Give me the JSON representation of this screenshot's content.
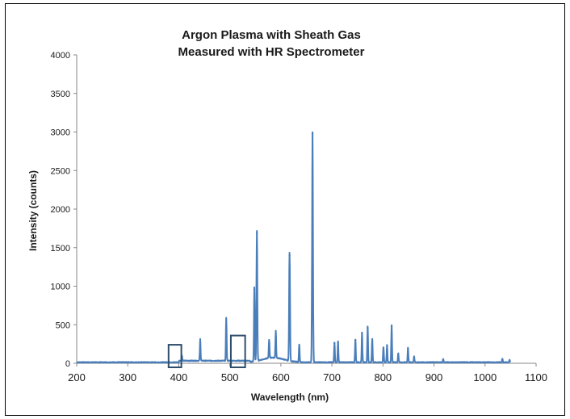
{
  "chart_data": {
    "type": "line",
    "title_line1": "Argon Plasma with Sheath Gas",
    "title_line2": "Measured with HR Spectrometer",
    "xlabel": "Wavelength (nm)",
    "ylabel": "Intensity (counts)",
    "xlim": [
      200,
      1100
    ],
    "ylim": [
      0,
      4000
    ],
    "x_ticks": [
      200,
      300,
      400,
      500,
      600,
      700,
      800,
      900,
      1000,
      1100
    ],
    "y_ticks": [
      0,
      500,
      1000,
      1500,
      2000,
      2500,
      3000,
      3500,
      4000
    ],
    "grid": false,
    "legend": "none",
    "series": [
      {
        "color": "#4a7ebb",
        "peaks": [
          {
            "x": 406,
            "y": 70
          },
          {
            "x": 442,
            "y": 280
          },
          {
            "x": 493,
            "y": 560
          },
          {
            "x": 548,
            "y": 960
          },
          {
            "x": 553,
            "y": 1690
          },
          {
            "x": 577,
            "y": 240
          },
          {
            "x": 590,
            "y": 350
          },
          {
            "x": 617,
            "y": 1400
          },
          {
            "x": 636,
            "y": 230
          },
          {
            "x": 662,
            "y": 2980
          },
          {
            "x": 705,
            "y": 260
          },
          {
            "x": 712,
            "y": 270
          },
          {
            "x": 746,
            "y": 300
          },
          {
            "x": 759,
            "y": 390
          },
          {
            "x": 770,
            "y": 460
          },
          {
            "x": 779,
            "y": 300
          },
          {
            "x": 801,
            "y": 200
          },
          {
            "x": 808,
            "y": 230
          },
          {
            "x": 817,
            "y": 480
          },
          {
            "x": 830,
            "y": 120
          },
          {
            "x": 849,
            "y": 190
          },
          {
            "x": 861,
            "y": 80
          },
          {
            "x": 918,
            "y": 40
          },
          {
            "x": 1034,
            "y": 50
          },
          {
            "x": 1048,
            "y": 30
          }
        ]
      }
    ],
    "highlight_boxes": [
      {
        "x": [
          380,
          405
        ],
        "y": [
          0,
          240
        ]
      },
      {
        "x": [
          502,
          530
        ],
        "y": [
          0,
          360
        ]
      }
    ],
    "line_color": "#4a7ebb",
    "box_color": "#2e4d6b"
  }
}
